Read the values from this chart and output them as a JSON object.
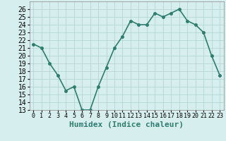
{
  "x": [
    0,
    1,
    2,
    3,
    4,
    5,
    6,
    7,
    8,
    9,
    10,
    11,
    12,
    13,
    14,
    15,
    16,
    17,
    18,
    19,
    20,
    21,
    22,
    23
  ],
  "y": [
    21.5,
    21.0,
    19.0,
    17.5,
    15.5,
    16.0,
    13.0,
    13.0,
    16.0,
    18.5,
    21.0,
    22.5,
    24.5,
    24.0,
    24.0,
    25.5,
    25.0,
    25.5,
    26.0,
    24.5,
    24.0,
    23.0,
    20.0,
    17.5
  ],
  "xlabel": "Humidex (Indice chaleur)",
  "line_color": "#2e7d6e",
  "bg_color": "#d6eeee",
  "grid_color": "#b0d0d0",
  "ylim": [
    13,
    27
  ],
  "yticks": [
    13,
    14,
    15,
    16,
    17,
    18,
    19,
    20,
    21,
    22,
    23,
    24,
    25,
    26
  ],
  "xticks": [
    0,
    1,
    2,
    3,
    4,
    5,
    6,
    7,
    8,
    9,
    10,
    11,
    12,
    13,
    14,
    15,
    16,
    17,
    18,
    19,
    20,
    21,
    22,
    23
  ],
  "xtick_labels": [
    "0",
    "1",
    "2",
    "3",
    "4",
    "5",
    "6",
    "7",
    "8",
    "9",
    "10",
    "11",
    "12",
    "13",
    "14",
    "15",
    "16",
    "17",
    "18",
    "19",
    "20",
    "21",
    "22",
    "23"
  ],
  "marker": "o",
  "marker_size": 2.5,
  "line_width": 1.2,
  "font_size": 7
}
